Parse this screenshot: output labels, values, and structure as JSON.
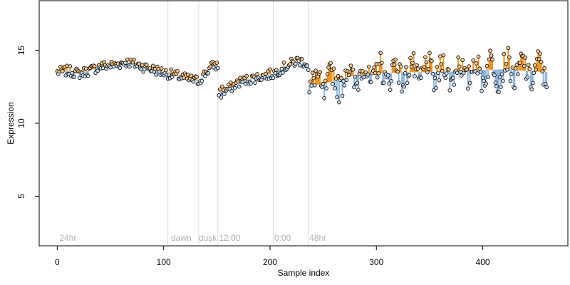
{
  "chart_data": {
    "type": "scatter",
    "title": "",
    "xlabel": "Sample index",
    "ylabel": "Expression",
    "xlim": [
      -17,
      480
    ],
    "ylim": [
      1.6,
      18.4
    ],
    "x_ticks": [
      0,
      100,
      200,
      300,
      400
    ],
    "y_ticks": [
      5,
      10,
      15
    ],
    "grid": false,
    "legend": "none",
    "region_boundaries": [
      104,
      133,
      151,
      203,
      236
    ],
    "region_labels": [
      {
        "x": 2,
        "text": "24hr"
      },
      {
        "x": 107,
        "text": "dawn"
      },
      {
        "x": 133,
        "text": "dusk"
      },
      {
        "x": 152,
        "text": "12:00"
      },
      {
        "x": 204,
        "text": "0:00"
      },
      {
        "x": 237,
        "text": "48hr"
      }
    ],
    "n_points": 461,
    "trend_anchors": [
      [
        0,
        13.5
      ],
      [
        10,
        13.6
      ],
      [
        20,
        13.4
      ],
      [
        30,
        13.6
      ],
      [
        40,
        13.9
      ],
      [
        55,
        14.0
      ],
      [
        65,
        14.2
      ],
      [
        75,
        14.0
      ],
      [
        90,
        13.7
      ],
      [
        104,
        13.4
      ],
      [
        115,
        13.2
      ],
      [
        125,
        13.0
      ],
      [
        133,
        12.9
      ],
      [
        140,
        13.5
      ],
      [
        147,
        14.0
      ],
      [
        151,
        13.9
      ],
      [
        152,
        12.1
      ],
      [
        160,
        12.3
      ],
      [
        170,
        12.8
      ],
      [
        185,
        13.1
      ],
      [
        203,
        13.4
      ],
      [
        215,
        13.9
      ],
      [
        226,
        14.3
      ],
      [
        236,
        14.1
      ],
      [
        237,
        12.6
      ],
      [
        250,
        12.7
      ],
      [
        265,
        13.0
      ],
      [
        280,
        13.3
      ],
      [
        300,
        13.4
      ],
      [
        330,
        13.5
      ],
      [
        360,
        13.5
      ],
      [
        390,
        13.6
      ],
      [
        420,
        13.7
      ],
      [
        440,
        13.6
      ],
      [
        460,
        13.5
      ]
    ],
    "point_fill_above": "#f8c585",
    "point_fill_below": "#c5dcf0",
    "stem_color_above": "#f0961e",
    "stem_color_below": "#8fb8e0",
    "point_stroke": "#000000",
    "boundary_color": "#dcdcdc"
  }
}
